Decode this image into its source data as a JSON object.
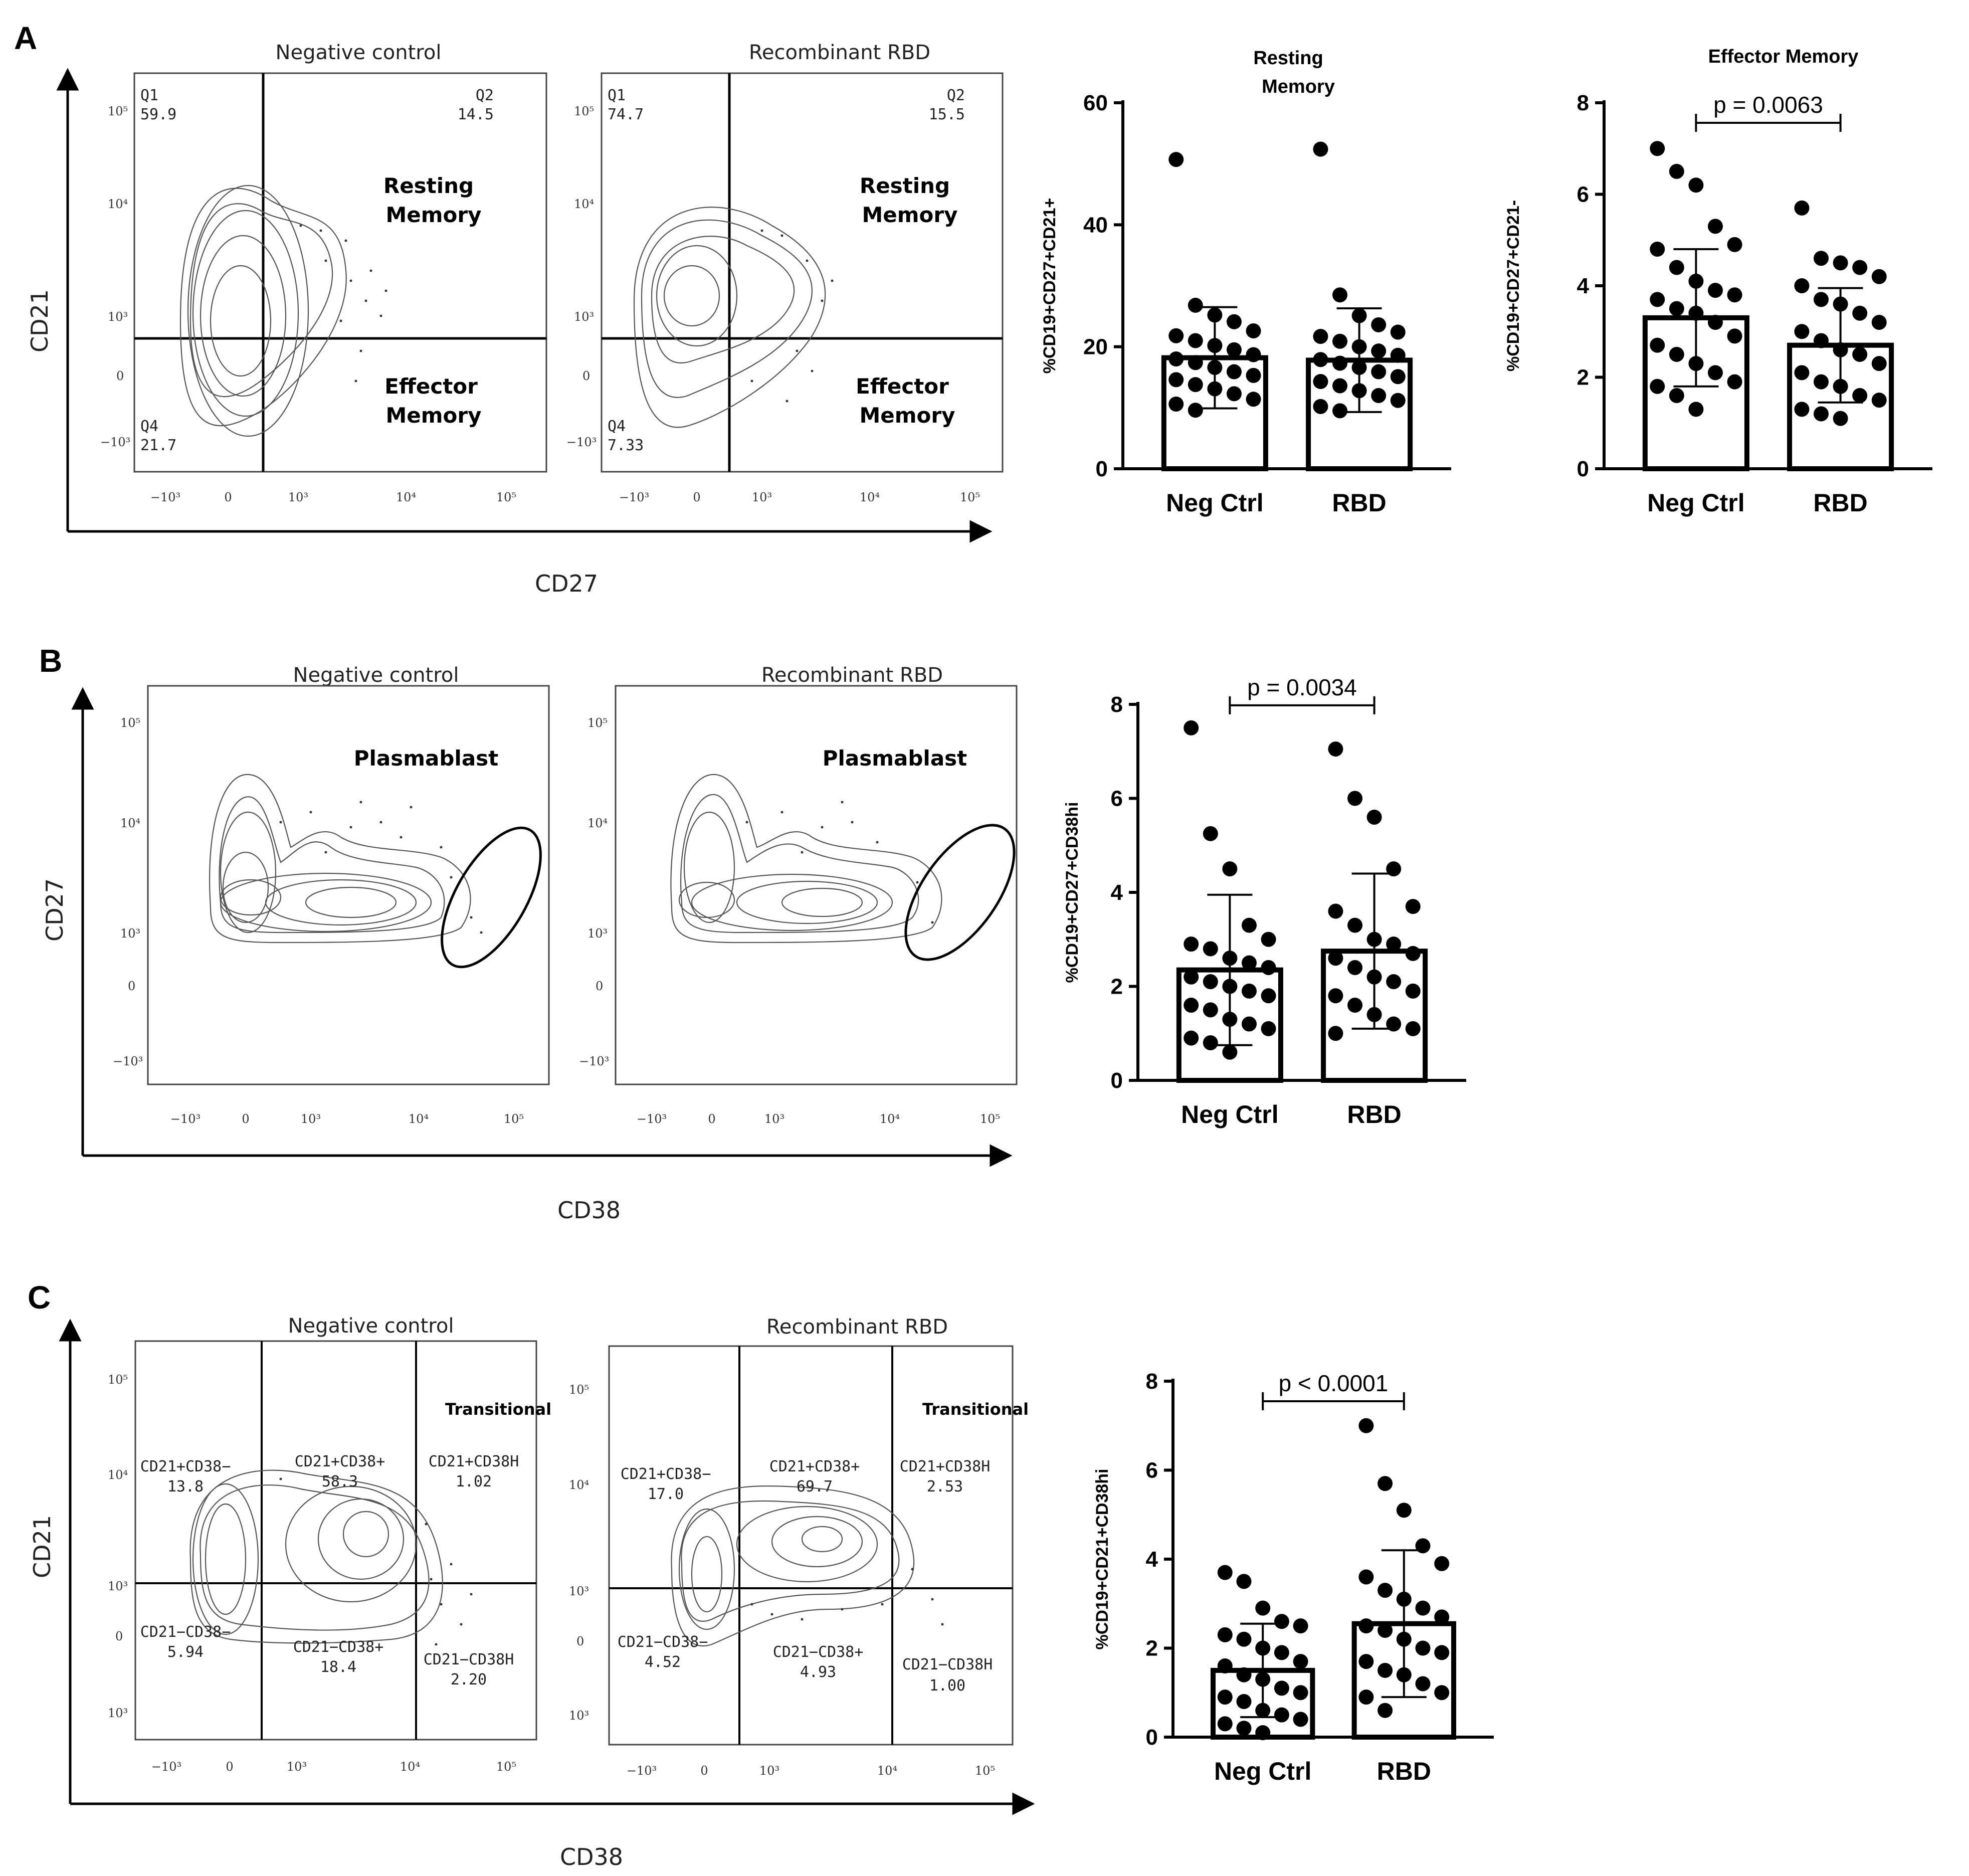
{
  "panels": {
    "A": {
      "letter": "A",
      "flow": {
        "left_title": "Negative control",
        "right_title": "Recombinant RBD",
        "y_axis": "CD21",
        "x_axis": "CD27",
        "upper_gate_label": [
          "Resting",
          "Memory"
        ],
        "lower_gate_label": [
          "Effector",
          "Memory"
        ],
        "left_quadrants": {
          "q1": [
            "Q1",
            "59.9"
          ],
          "q2": [
            "Q2",
            "14.5"
          ],
          "q4": [
            "Q4",
            "21.7"
          ]
        },
        "right_quadrants": {
          "q1": [
            "Q1",
            "74.7"
          ],
          "q2": [
            "Q2",
            "15.5"
          ],
          "q4": [
            "Q4",
            "7.33"
          ]
        }
      }
    },
    "B": {
      "letter": "B",
      "flow": {
        "left_title": "Negative control",
        "right_title": "Recombinant RBD",
        "y_axis": "CD27",
        "x_axis": "CD38",
        "gate_label": "Plasmablast"
      }
    },
    "C": {
      "letter": "C",
      "flow": {
        "left_title": "Negative control",
        "right_title": "Recombinant RBD",
        "y_axis": "CD21",
        "x_axis": "CD38",
        "transitional_label": "Transitional",
        "left_quadrants": [
          [
            "CD21+CD38−",
            "13.8"
          ],
          [
            "CD21+CD38+",
            "58.3"
          ],
          [
            "CD21+CD38H",
            "1.02"
          ],
          [
            "CD21−CD38−",
            "5.94"
          ],
          [
            "CD21−CD38+",
            "18.4"
          ],
          [
            "CD21−CD38H",
            "2.20"
          ]
        ],
        "right_quadrants": [
          [
            "CD21+CD38−",
            "17.0"
          ],
          [
            "CD21+CD38+",
            "69.7"
          ],
          [
            "CD21+CD38H",
            "2.53"
          ],
          [
            "CD21−CD38−",
            "4.52"
          ],
          [
            "CD21−CD38+",
            "4.93"
          ],
          [
            "CD21−CD38H",
            "1.00"
          ]
        ]
      }
    }
  },
  "flow_ticks": {
    "x": [
      "−10³",
      "0",
      "10³",
      "10⁴",
      "10⁵"
    ],
    "y": [
      "10⁵",
      "10⁴",
      "10³",
      "0",
      "−10³"
    ],
    "y_c": [
      "10⁵",
      "10⁴",
      "10³",
      "0",
      "10³"
    ]
  },
  "chart_data": [
    {
      "id": "A-resting",
      "type": "bar",
      "title": "Resting Memory",
      "categories": [
        "Neg Ctrl",
        "RBD"
      ],
      "values": [
        18.2,
        17.8
      ],
      "sd": [
        8.3,
        8.5
      ],
      "ylabel": "%CD19+CD27+CD21+",
      "ylim": [
        0,
        60
      ],
      "yticks": [
        "0",
        "20",
        "40",
        "60"
      ],
      "points": [
        [
          50.7,
          26.8,
          25.2,
          24.1,
          22.6,
          21.8,
          21.0,
          20.2,
          19.5,
          18.7,
          18.0,
          17.4,
          16.6,
          15.9,
          15.3,
          14.6,
          13.8,
          13.1,
          12.3,
          11.4,
          10.6,
          9.6
        ],
        [
          52.4,
          28.5,
          25.1,
          23.6,
          22.4,
          21.7,
          20.9,
          20.0,
          19.3,
          18.6,
          17.9,
          17.3,
          16.6,
          15.9,
          15.1,
          14.3,
          13.6,
          12.8,
          12.0,
          11.2,
          10.2,
          9.5
        ]
      ],
      "p_value": ""
    },
    {
      "id": "A-effector",
      "type": "bar",
      "title": "Effector Memory",
      "categories": [
        "Neg Ctrl",
        "RBD"
      ],
      "values": [
        3.3,
        2.7
      ],
      "sd": [
        1.5,
        1.25
      ],
      "ylabel": "%CD19+CD27+CD21-",
      "ylim": [
        0,
        8
      ],
      "yticks": [
        "0",
        "2",
        "4",
        "6",
        "8"
      ],
      "points": [
        [
          7.0,
          6.5,
          6.2,
          5.3,
          4.9,
          4.8,
          4.4,
          4.1,
          3.9,
          3.8,
          3.7,
          3.5,
          3.4,
          3.2,
          2.9,
          2.7,
          2.5,
          2.3,
          2.1,
          1.9,
          1.8,
          1.6,
          1.3
        ],
        [
          5.7,
          4.6,
          4.5,
          4.4,
          4.2,
          4.0,
          3.7,
          3.6,
          3.4,
          3.2,
          3.0,
          2.8,
          2.6,
          2.5,
          2.3,
          2.1,
          1.9,
          1.8,
          1.6,
          1.5,
          1.3,
          1.2,
          1.1
        ]
      ],
      "p_value": "p = 0.0063"
    },
    {
      "id": "B",
      "type": "bar",
      "title": "",
      "categories": [
        "Neg Ctrl",
        "RBD"
      ],
      "values": [
        2.35,
        2.75
      ],
      "sd": [
        1.6,
        1.65
      ],
      "ylabel": "%CD19+CD27+CD38hi",
      "ylim": [
        0,
        8
      ],
      "yticks": [
        "0",
        "2",
        "4",
        "6",
        "8"
      ],
      "points": [
        [
          7.5,
          5.25,
          4.5,
          3.3,
          3.0,
          2.9,
          2.8,
          2.6,
          2.5,
          2.4,
          2.2,
          2.1,
          2.0,
          1.9,
          1.8,
          1.6,
          1.5,
          1.3,
          1.2,
          1.1,
          0.9,
          0.8,
          0.6
        ],
        [
          7.05,
          6.0,
          5.6,
          4.5,
          3.7,
          3.6,
          3.3,
          3.0,
          2.9,
          2.7,
          2.6,
          2.4,
          2.2,
          2.1,
          1.9,
          1.8,
          1.6,
          1.4,
          1.2,
          1.1,
          1.0
        ]
      ],
      "p_value": "p = 0.0034"
    },
    {
      "id": "C",
      "type": "bar",
      "title": "",
      "categories": [
        "Neg Ctrl",
        "RBD"
      ],
      "values": [
        1.5,
        2.55
      ],
      "sd": [
        1.05,
        1.65
      ],
      "ylabel": "%CD19+CD21+CD38hi",
      "ylim": [
        0,
        8
      ],
      "yticks": [
        "0",
        "2",
        "4",
        "6",
        "8"
      ],
      "points": [
        [
          3.7,
          3.5,
          2.9,
          2.6,
          2.5,
          2.3,
          2.2,
          2.0,
          1.9,
          1.7,
          1.6,
          1.4,
          1.3,
          1.1,
          1.0,
          0.9,
          0.8,
          0.6,
          0.5,
          0.4,
          0.3,
          0.2,
          0.1
        ],
        [
          7.0,
          5.7,
          5.1,
          4.3,
          3.9,
          3.6,
          3.3,
          3.1,
          2.9,
          2.7,
          2.5,
          2.4,
          2.2,
          2.0,
          1.9,
          1.7,
          1.5,
          1.4,
          1.2,
          1.0,
          0.9,
          0.6
        ]
      ],
      "p_value": "p < 0.0001"
    }
  ]
}
